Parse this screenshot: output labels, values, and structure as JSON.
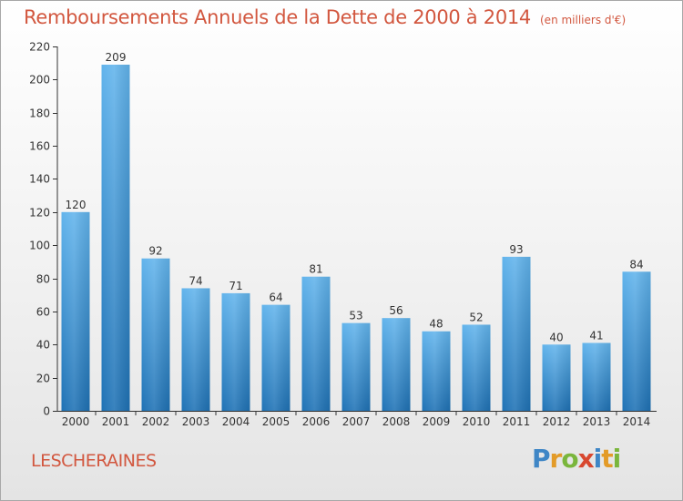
{
  "header": {
    "title": "Remboursements Annuels de la Dette de 2000 à 2014",
    "subtitle": "(en milliers d'€)"
  },
  "footer": {
    "commune": "LESCHERAINES",
    "brand": "Proxiti",
    "brand_letters": [
      {
        "ch": "P",
        "color": "#3f86c6"
      },
      {
        "ch": "r",
        "color": "#e39b28"
      },
      {
        "ch": "o",
        "color": "#7ab63c"
      },
      {
        "ch": "x",
        "color": "#d8482f"
      },
      {
        "ch": "i",
        "color": "#3f86c6"
      },
      {
        "ch": "t",
        "color": "#e39b28"
      },
      {
        "ch": "i",
        "color": "#7ab63c"
      }
    ]
  },
  "chart_data": {
    "type": "bar",
    "categories": [
      "2000",
      "2001",
      "2002",
      "2003",
      "2004",
      "2005",
      "2006",
      "2007",
      "2008",
      "2009",
      "2010",
      "2011",
      "2012",
      "2013",
      "2014"
    ],
    "values": [
      120,
      209,
      92,
      74,
      71,
      64,
      81,
      53,
      56,
      48,
      52,
      93,
      40,
      41,
      84
    ],
    "data_labels": [
      "120",
      "209",
      "92",
      "74",
      "71",
      "64",
      "81",
      "53",
      "56",
      "48",
      "52",
      "93",
      "40",
      "41",
      "84"
    ],
    "ylim": [
      0,
      220
    ],
    "yticks": [
      0,
      20,
      40,
      60,
      80,
      100,
      120,
      140,
      160,
      180,
      200,
      220
    ],
    "grid": false,
    "bar_color": "#3a8fd6"
  }
}
